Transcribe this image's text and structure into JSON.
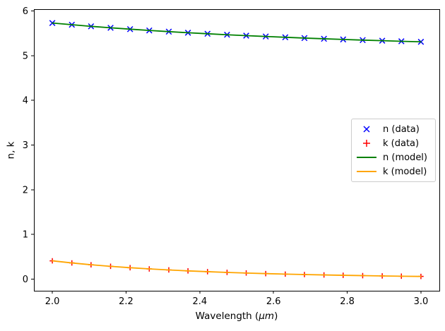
{
  "figure": {
    "background": "#ffffff",
    "text_color": "#000000",
    "frame_color": "#000000",
    "legend_border_color": "#cccccc"
  },
  "chart_data": {
    "type": "line",
    "title": "",
    "xlabel": "Wavelength (μm)",
    "xlabel_parts": {
      "pre": "Wavelength (",
      "math": "μm",
      "post": ")"
    },
    "ylabel": "n, k",
    "xlim": [
      1.95,
      3.05
    ],
    "ylim": [
      -0.26,
      6.04
    ],
    "grid": false,
    "legend_position": "center right",
    "xticks": {
      "values": [
        2.0,
        2.2,
        2.4,
        2.6,
        2.8,
        3.0
      ],
      "labels": [
        "2.0",
        "2.2",
        "2.4",
        "2.6",
        "2.8",
        "3.0"
      ]
    },
    "yticks": {
      "values": [
        0,
        1,
        2,
        3,
        4,
        5,
        6
      ],
      "labels": [
        "0",
        "1",
        "2",
        "3",
        "4",
        "5",
        "6"
      ]
    },
    "x": [
      2.0,
      2.053,
      2.105,
      2.158,
      2.211,
      2.263,
      2.316,
      2.368,
      2.421,
      2.474,
      2.526,
      2.579,
      2.632,
      2.684,
      2.737,
      2.789,
      2.842,
      2.895,
      2.947,
      3.0
    ],
    "series": [
      {
        "name": "n (data)",
        "kind": "scatter",
        "marker": "x",
        "color": "#0000ff",
        "values": [
          5.73,
          5.692,
          5.656,
          5.623,
          5.593,
          5.564,
          5.538,
          5.513,
          5.49,
          5.468,
          5.448,
          5.429,
          5.411,
          5.394,
          5.378,
          5.363,
          5.348,
          5.335,
          5.322,
          5.31
        ]
      },
      {
        "name": "k (data)",
        "kind": "scatter",
        "marker": "+",
        "color": "#ff0000",
        "values": [
          0.41,
          0.363,
          0.322,
          0.287,
          0.256,
          0.229,
          0.206,
          0.185,
          0.167,
          0.151,
          0.137,
          0.124,
          0.113,
          0.103,
          0.094,
          0.086,
          0.079,
          0.072,
          0.066,
          0.061
        ]
      },
      {
        "name": "n (model)",
        "kind": "line",
        "color": "#008000",
        "values": [
          5.73,
          5.692,
          5.656,
          5.623,
          5.593,
          5.564,
          5.538,
          5.513,
          5.49,
          5.468,
          5.448,
          5.429,
          5.411,
          5.394,
          5.378,
          5.363,
          5.348,
          5.335,
          5.322,
          5.31
        ]
      },
      {
        "name": "k (model)",
        "kind": "line",
        "color": "#ffa500",
        "values": [
          0.41,
          0.363,
          0.322,
          0.287,
          0.256,
          0.229,
          0.206,
          0.185,
          0.167,
          0.151,
          0.137,
          0.124,
          0.113,
          0.103,
          0.094,
          0.086,
          0.079,
          0.072,
          0.066,
          0.061
        ]
      }
    ]
  }
}
